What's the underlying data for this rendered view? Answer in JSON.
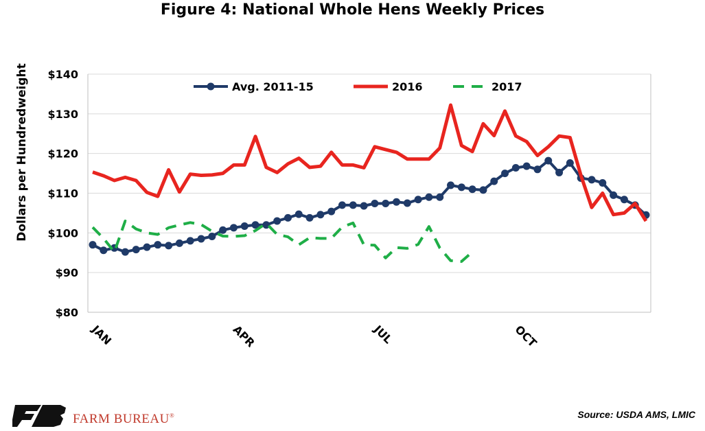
{
  "chart_data": {
    "type": "line",
    "title": "Figure 4: National Whole Hens Weekly Prices",
    "xlabel": "",
    "ylabel": "Dollars per Hundredweight",
    "ylim": [
      80,
      140
    ],
    "yticks": [
      "$80",
      "$90",
      "$100",
      "$110",
      "$120",
      "$130",
      "$140"
    ],
    "ytick_values": [
      80,
      90,
      100,
      110,
      120,
      130,
      140
    ],
    "x_weeks": 52,
    "xticks": [
      {
        "label": "JAN",
        "week": 1
      },
      {
        "label": "APR",
        "week": 14
      },
      {
        "label": "JUL",
        "week": 27
      },
      {
        "label": "OCT",
        "week": 40
      }
    ],
    "grid": true,
    "legend": "top-center",
    "series": [
      {
        "name": "Avg. 2011-15",
        "color": "#1f3a68",
        "style": "line-markers",
        "values": [
          97.0,
          95.6,
          96.2,
          95.2,
          95.8,
          96.4,
          97.0,
          96.8,
          97.4,
          98.0,
          98.5,
          99.1,
          100.7,
          101.3,
          101.7,
          102.0,
          102.0,
          103.0,
          103.8,
          104.7,
          103.8,
          104.6,
          105.4,
          107.0,
          107.0,
          106.8,
          107.4,
          107.4,
          107.8,
          107.5,
          108.4,
          109.0,
          109.0,
          112.0,
          111.5,
          111.0,
          110.8,
          113.0,
          115.0,
          116.4,
          116.8,
          116.0,
          118.2,
          115.2,
          117.6,
          113.8,
          113.4,
          112.6,
          109.5,
          108.4,
          107.0,
          104.5
        ]
      },
      {
        "name": "2016",
        "color": "#e8251f",
        "style": "line",
        "values": [
          115.3,
          114.4,
          113.2,
          114.0,
          113.2,
          110.2,
          109.2,
          115.9,
          110.3,
          114.8,
          114.5,
          114.6,
          115.0,
          117.1,
          117.1,
          124.3,
          116.5,
          115.2,
          117.4,
          118.8,
          116.5,
          116.8,
          120.3,
          117.1,
          117.1,
          116.4,
          121.7,
          121.0,
          120.3,
          118.6,
          118.6,
          118.6,
          121.4,
          132.2,
          122.0,
          120.5,
          127.5,
          124.5,
          130.7,
          124.4,
          123.0,
          119.5,
          121.7,
          124.4,
          124.0,
          114.5,
          106.4,
          110.0,
          104.6,
          105.0,
          107.4,
          103.0
        ]
      },
      {
        "name": "2017",
        "color": "#1fae47",
        "style": "dashed",
        "values": [
          101.4,
          98.6,
          95.2,
          103.0,
          101.0,
          100.0,
          99.6,
          101.3,
          102.0,
          102.6,
          102.1,
          100.4,
          99.2,
          99.1,
          99.3,
          100.6,
          102.4,
          99.6,
          99.0,
          97.0,
          98.8,
          98.6,
          98.6,
          101.5,
          102.5,
          97.0,
          96.9,
          93.7,
          96.3,
          96.1,
          97.1,
          101.6,
          96.2,
          93.0,
          92.8,
          95.2
        ]
      }
    ]
  },
  "source": "Source: USDA AMS, LMIC",
  "logo": {
    "text": "FARM BUREAU",
    "mark": "registered",
    "color": "#c0392b"
  }
}
